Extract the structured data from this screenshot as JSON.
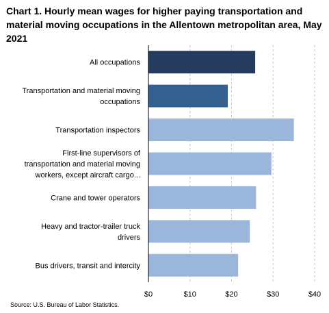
{
  "title": "Chart 1. Hourly mean wages for higher paying transportation and material moving occupations in the Allentown metropolitan area, May 2021",
  "source": "Source: U.S. Bureau of Labor Statistics.",
  "chart_data": {
    "type": "bar",
    "orientation": "horizontal",
    "title": "Chart 1. Hourly mean wages for higher paying transportation and material moving occupations in the Allentown metropolitan area, May 2021",
    "xlabel": "",
    "ylabel": "",
    "xlim": [
      0,
      40
    ],
    "ticks": [
      0,
      10,
      20,
      30,
      40
    ],
    "tick_labels": [
      "$0",
      "$10",
      "$20",
      "$30",
      "$40"
    ],
    "grid": "vertical dashed",
    "categories": [
      [
        "All occupations"
      ],
      [
        "Transportation and material moving",
        "occupations"
      ],
      [
        "Transportation inspectors"
      ],
      [
        "First-line supervisors of",
        "transportation and material moving",
        "workers, except aircraft cargo..."
      ],
      [
        "Crane and tower operators"
      ],
      [
        "Heavy and tractor-trailer truck",
        "drivers"
      ],
      [
        "Bus drivers, transit and intercity"
      ]
    ],
    "values": [
      25.7,
      19.1,
      35.0,
      29.6,
      25.9,
      24.4,
      21.6
    ],
    "colors": [
      "#243b5e",
      "#34608f",
      "#9ab6db",
      "#9ab6db",
      "#9ab6db",
      "#9ab6db",
      "#9ab6db"
    ]
  }
}
